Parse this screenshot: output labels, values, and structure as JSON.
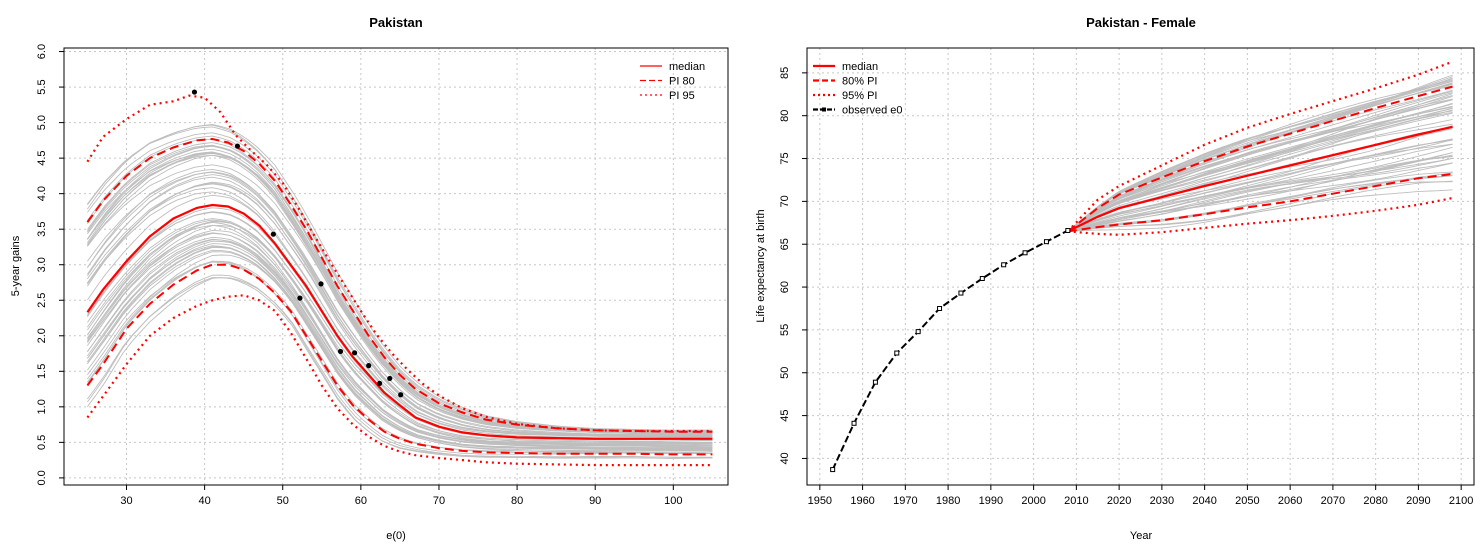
{
  "chart_data": [
    {
      "type": "line",
      "title": "Pakistan",
      "xlabel": "e(0)",
      "ylabel": "5-year gains",
      "xlim": [
        22,
        107
      ],
      "ylim": [
        -0.1,
        6.05
      ],
      "xticks": [
        "30",
        "40",
        "50",
        "60",
        "70",
        "80",
        "90",
        "100"
      ],
      "yticks": [
        "0.0",
        "0.5",
        "1.0",
        "1.5",
        "2.0",
        "2.5",
        "3.0",
        "3.5",
        "4.0",
        "4.5",
        "5.0",
        "5.5",
        "6.0"
      ],
      "grid": true,
      "legend_position": "top-right",
      "legend": [
        "median",
        "PI 80",
        "PI 95"
      ],
      "colors": {
        "median": "#ff0000",
        "pi": "#ff0000",
        "trajectories": "#bebebe",
        "observed": "#000000",
        "grid": "#c8c8c8"
      },
      "series": [
        {
          "name": "median",
          "style": "solid",
          "x": [
            25,
            27,
            30,
            33,
            36,
            39,
            41,
            43,
            45,
            47,
            49,
            51,
            53,
            55,
            57,
            59,
            61,
            63,
            65,
            67,
            70,
            73,
            76,
            80,
            85,
            90,
            95,
            100,
            105
          ],
          "y": [
            2.33,
            2.65,
            3.05,
            3.4,
            3.65,
            3.8,
            3.84,
            3.82,
            3.72,
            3.55,
            3.3,
            3.0,
            2.7,
            2.35,
            2.0,
            1.7,
            1.45,
            1.2,
            1.02,
            0.85,
            0.72,
            0.64,
            0.6,
            0.57,
            0.56,
            0.55,
            0.55,
            0.55,
            0.55
          ]
        },
        {
          "name": "PI 80",
          "style": "dashed",
          "x": [
            25,
            27,
            30,
            33,
            36,
            39,
            41,
            43,
            45,
            47,
            49,
            51,
            53,
            55,
            57,
            59,
            61,
            63,
            65,
            67,
            70,
            73,
            76,
            80,
            85,
            90,
            95,
            100,
            105
          ],
          "y": [
            3.6,
            3.9,
            4.25,
            4.5,
            4.65,
            4.75,
            4.77,
            4.72,
            4.6,
            4.42,
            4.18,
            3.85,
            3.5,
            3.1,
            2.7,
            2.35,
            2.0,
            1.7,
            1.45,
            1.25,
            1.05,
            0.92,
            0.82,
            0.75,
            0.7,
            0.67,
            0.66,
            0.65,
            0.65
          ]
        },
        {
          "name": "PI 80 lower",
          "style": "dashed",
          "x": [
            25,
            27,
            30,
            33,
            36,
            39,
            41,
            43,
            45,
            47,
            49,
            51,
            53,
            55,
            57,
            59,
            61,
            63,
            65,
            67,
            70,
            73,
            76,
            80,
            85,
            90,
            95,
            100,
            105
          ],
          "y": [
            1.3,
            1.6,
            2.1,
            2.45,
            2.72,
            2.92,
            3.0,
            3.0,
            2.93,
            2.8,
            2.6,
            2.35,
            2.0,
            1.65,
            1.3,
            1.02,
            0.82,
            0.65,
            0.55,
            0.48,
            0.42,
            0.38,
            0.36,
            0.35,
            0.34,
            0.34,
            0.34,
            0.33,
            0.33
          ]
        },
        {
          "name": "PI 95",
          "style": "dotted",
          "x": [
            25,
            27,
            30,
            33,
            36,
            38,
            40,
            42,
            44,
            46,
            48,
            50,
            52,
            54,
            56,
            58,
            60,
            62,
            64,
            66,
            68,
            70,
            73,
            76,
            80,
            85,
            90,
            95,
            100,
            105
          ],
          "y": [
            4.45,
            4.8,
            5.05,
            5.25,
            5.3,
            5.38,
            5.35,
            5.15,
            4.82,
            4.6,
            4.4,
            4.15,
            3.8,
            3.42,
            3.05,
            2.7,
            2.35,
            2.02,
            1.75,
            1.52,
            1.32,
            1.16,
            0.98,
            0.86,
            0.76,
            0.7,
            0.67,
            0.66,
            0.66,
            0.66
          ]
        },
        {
          "name": "PI 95 lower",
          "style": "dotted",
          "x": [
            25,
            27,
            30,
            33,
            36,
            39,
            41,
            43,
            45,
            47,
            49,
            51,
            53,
            55,
            57,
            59,
            61,
            63,
            65,
            67,
            70,
            73,
            76,
            80,
            85,
            90,
            95,
            100,
            105
          ],
          "y": [
            0.85,
            1.15,
            1.6,
            2.0,
            2.25,
            2.42,
            2.5,
            2.55,
            2.57,
            2.5,
            2.35,
            2.05,
            1.68,
            1.3,
            0.98,
            0.75,
            0.58,
            0.45,
            0.37,
            0.32,
            0.28,
            0.25,
            0.22,
            0.2,
            0.19,
            0.18,
            0.18,
            0.18,
            0.18
          ]
        }
      ],
      "observed_points": {
        "x": [
          38.7,
          44.2,
          48.8,
          52.2,
          54.9,
          57.4,
          59.2,
          61.0,
          62.4,
          63.7,
          65.1
        ],
        "y": [
          5.43,
          4.67,
          3.43,
          2.53,
          2.73,
          1.78,
          1.76,
          1.58,
          1.33,
          1.4,
          1.17
        ]
      }
    },
    {
      "type": "line",
      "title": "Pakistan - Female",
      "xlabel": "Year",
      "ylabel": "Life expectancy at birth",
      "xlim": [
        1947,
        2103
      ],
      "ylim": [
        36.9,
        87.9
      ],
      "xticks": [
        "1950",
        "1960",
        "1970",
        "1980",
        "1990",
        "2000",
        "2010",
        "2020",
        "2030",
        "2040",
        "2050",
        "2060",
        "2070",
        "2080",
        "2090",
        "2100"
      ],
      "yticks": [
        "40",
        "45",
        "50",
        "55",
        "60",
        "65",
        "70",
        "75",
        "80",
        "85"
      ],
      "grid": true,
      "legend_position": "top-left",
      "legend": [
        "median",
        "80% PI",
        "95% PI",
        "observed e0"
      ],
      "colors": {
        "median": "#ff0000",
        "pi": "#ff0000",
        "trajectories": "#bebebe",
        "observed": "#000000",
        "grid": "#c8c8c8"
      },
      "series": [
        {
          "name": "median",
          "style": "solid",
          "x": [
            2008,
            2015,
            2020,
            2030,
            2040,
            2050,
            2060,
            2070,
            2080,
            2090,
            2098
          ],
          "y": [
            66.5,
            68.2,
            69.2,
            70.5,
            71.8,
            73.0,
            74.2,
            75.4,
            76.6,
            77.8,
            78.7
          ]
        },
        {
          "name": "80% PI",
          "style": "dashed",
          "x": [
            2008,
            2015,
            2020,
            2030,
            2040,
            2050,
            2060,
            2070,
            2080,
            2090,
            2098
          ],
          "y": [
            66.5,
            69.2,
            70.8,
            72.8,
            74.7,
            76.4,
            77.9,
            79.4,
            80.9,
            82.3,
            83.4
          ]
        },
        {
          "name": "80% PI lower",
          "style": "dashed",
          "x": [
            2008,
            2015,
            2020,
            2030,
            2040,
            2050,
            2060,
            2070,
            2080,
            2090,
            2098
          ],
          "y": [
            66.5,
            67.0,
            67.3,
            67.8,
            68.5,
            69.3,
            70.0,
            70.9,
            71.8,
            72.7,
            73.2
          ]
        },
        {
          "name": "95% PI",
          "style": "dotted",
          "x": [
            2008,
            2015,
            2020,
            2030,
            2040,
            2050,
            2060,
            2070,
            2080,
            2090,
            2098
          ],
          "y": [
            66.5,
            70.2,
            71.8,
            74.2,
            76.6,
            78.6,
            80.2,
            81.7,
            83.2,
            84.8,
            86.3
          ]
        },
        {
          "name": "95% PI lower",
          "style": "dotted",
          "x": [
            2008,
            2015,
            2020,
            2030,
            2040,
            2050,
            2060,
            2070,
            2080,
            2090,
            2098
          ],
          "y": [
            66.5,
            66.2,
            66.1,
            66.4,
            66.9,
            67.4,
            67.8,
            68.3,
            68.9,
            69.6,
            70.4
          ]
        }
      ],
      "observed_e0": {
        "x": [
          1953,
          1958,
          1963,
          1968,
          1973,
          1978,
          1983,
          1988,
          1993,
          1998,
          2003,
          2008
        ],
        "y": [
          38.7,
          44.1,
          48.9,
          52.3,
          54.8,
          57.5,
          59.3,
          61.0,
          62.6,
          64.0,
          65.3,
          66.6
        ]
      }
    }
  ]
}
